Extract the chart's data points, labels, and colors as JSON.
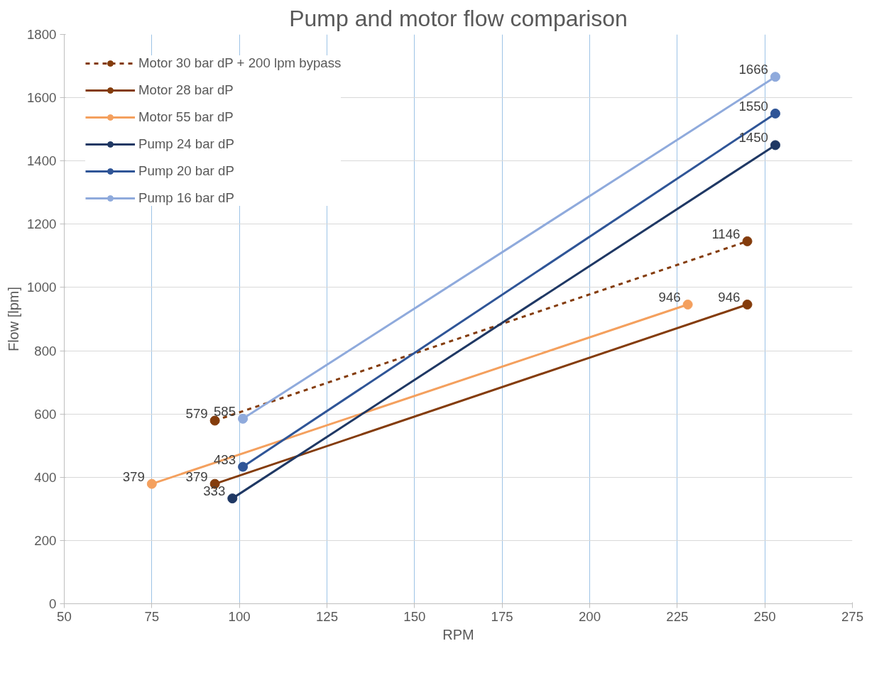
{
  "chart_data": {
    "type": "line",
    "title": "Pump and motor flow comparison",
    "xlabel": "RPM",
    "ylabel": "Flow [lpm]",
    "xlim": [
      50,
      275
    ],
    "xticks": [
      50,
      75,
      100,
      125,
      150,
      175,
      200,
      225,
      250,
      275
    ],
    "ylim": [
      0,
      1800
    ],
    "yticks": [
      0,
      200,
      400,
      600,
      800,
      1000,
      1200,
      1400,
      1600,
      1800
    ],
    "grid": true,
    "legend": "top left",
    "marker": "circle",
    "data_labels": true,
    "series": [
      {
        "name": "Motor 30 bar dP + 200 lpm bypass",
        "color": "#843c0c",
        "x": [
          93,
          245
        ],
        "values": [
          579,
          1146
        ],
        "line_style": "dashed"
      },
      {
        "name": "Motor 28 bar dP",
        "color": "#843c0c",
        "x": [
          93,
          245
        ],
        "values": [
          379,
          946
        ]
      },
      {
        "name": "Motor 55 bar dP",
        "color": "#f4a05e",
        "x": [
          75,
          228
        ],
        "values": [
          379,
          946
        ]
      },
      {
        "name": "Pump 24 bar dP",
        "color": "#1f3864",
        "x": [
          98,
          253
        ],
        "values": [
          333,
          1450
        ]
      },
      {
        "name": "Pump 20 bar dP",
        "color": "#2f5597",
        "x": [
          101,
          253
        ],
        "values": [
          433,
          1550
        ]
      },
      {
        "name": "Pump 16 bar dP",
        "color": "#8faadc",
        "x": [
          101,
          253
        ],
        "values": [
          585,
          1666
        ]
      }
    ]
  }
}
